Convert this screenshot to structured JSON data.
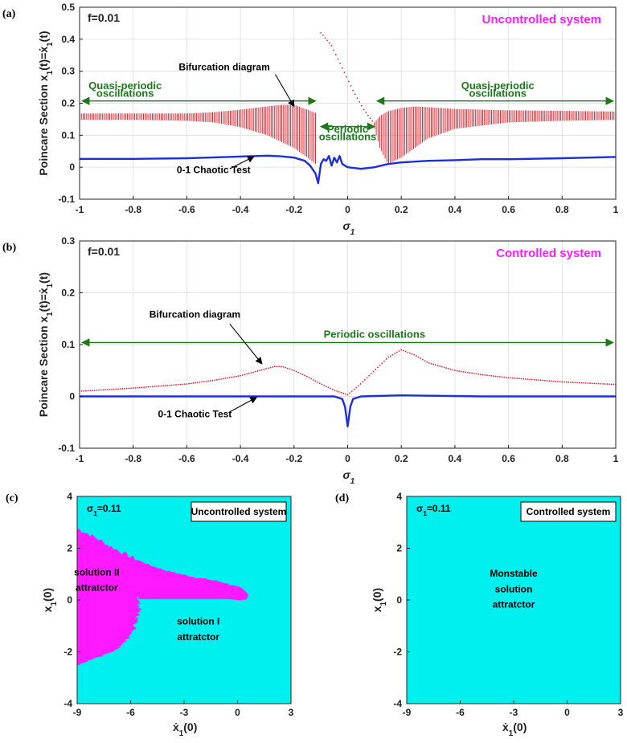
{
  "colors": {
    "bifurcation": "#e8242e",
    "chaotic_test": "#1f2fd6",
    "arrow_green": "#1a7a1a",
    "uncontrolled_title": "#ff1aff",
    "basin_cyan": "#00f0f0",
    "basin_magenta": "#ff19ff"
  },
  "chart_data": [
    {
      "id": "a",
      "type": "line",
      "panel_label": "(a)",
      "param_label": "f=0.01",
      "title": "Uncontrolled system",
      "xlabel": "σ1",
      "ylabel": "Poincare Section x1(t)=ẋ1(t)",
      "xlim": [
        -1,
        1
      ],
      "ylim": [
        -0.1,
        0.5
      ],
      "xticks": [
        -1,
        -0.8,
        -0.6,
        -0.4,
        -0.2,
        0,
        0.2,
        0.4,
        0.6,
        0.8,
        1
      ],
      "xtick_labels": [
        "-1",
        "-0.8",
        "-0.6",
        "-0.4",
        "-0.2",
        "0",
        "0.2",
        "0.4",
        "0.6",
        "0.8",
        "1"
      ],
      "yticks": [
        -0.1,
        0,
        0.1,
        0.2,
        0.3,
        0.4,
        0.5
      ],
      "ytick_labels": [
        "-0.1",
        "0",
        "0.1",
        "0.2",
        "0.3",
        "0.4",
        "0.5"
      ],
      "series": [
        {
          "name": "Bifurcation diagram",
          "style": "quasi-periodic band",
          "x": [
            -1,
            -0.8,
            -0.6,
            -0.5,
            -0.4,
            -0.3,
            -0.25,
            -0.2,
            -0.15,
            -0.12
          ],
          "upper": [
            0.168,
            0.168,
            0.168,
            0.172,
            0.18,
            0.19,
            0.195,
            0.195,
            0.18,
            0.17
          ],
          "lower": [
            0.148,
            0.148,
            0.145,
            0.14,
            0.125,
            0.1,
            0.08,
            0.06,
            0.03,
            0.01
          ]
        },
        {
          "name": "Bifurcation diagram",
          "style": "periodic dotted",
          "x": [
            -0.1,
            -0.06,
            -0.02,
            0.02,
            0.06,
            0.1
          ],
          "values": [
            0.42,
            0.38,
            0.31,
            0.24,
            0.18,
            0.135
          ]
        },
        {
          "name": "Bifurcation diagram",
          "style": "quasi-periodic band",
          "x": [
            0.1,
            0.12,
            0.15,
            0.2,
            0.25,
            0.3,
            0.4,
            0.6,
            0.8,
            1
          ],
          "upper": [
            0.14,
            0.16,
            0.175,
            0.185,
            0.19,
            0.188,
            0.182,
            0.178,
            0.176,
            0.174
          ],
          "lower": [
            0.12,
            0.06,
            0.01,
            0.03,
            0.06,
            0.09,
            0.12,
            0.14,
            0.145,
            0.148
          ]
        },
        {
          "name": "0-1 Chaotic Test",
          "x": [
            -1,
            -0.8,
            -0.6,
            -0.45,
            -0.3,
            -0.25,
            -0.2,
            -0.16,
            -0.14,
            -0.12,
            -0.11,
            -0.1,
            -0.09,
            -0.08,
            -0.07,
            -0.06,
            -0.05,
            -0.04,
            -0.03,
            -0.02,
            0,
            0.05,
            0.1,
            0.15,
            0.2,
            0.3,
            0.4,
            0.5,
            0.6,
            0.8,
            1
          ],
          "values": [
            0.026,
            0.026,
            0.028,
            0.032,
            0.036,
            0.034,
            0.03,
            0.02,
            0.005,
            -0.02,
            -0.05,
            0.01,
            0.025,
            0.02,
            0.035,
            0.005,
            0.03,
            0.015,
            0.035,
            0.01,
            0.0,
            -0.005,
            0.0,
            0.01,
            0.015,
            0.02,
            0.022,
            0.025,
            0.025,
            0.028,
            0.032
          ]
        }
      ],
      "annotations": [
        {
          "text": "Quasi-periodic",
          "x": -0.83,
          "y": 0.244,
          "color": "green"
        },
        {
          "text": "oscillations",
          "x": -0.83,
          "y": 0.22,
          "color": "green"
        },
        {
          "text": "Bifurcation diagram",
          "x": -0.46,
          "y": 0.303,
          "color": "black"
        },
        {
          "text": "Periodic",
          "x": 0.0,
          "y": 0.108,
          "color": "green"
        },
        {
          "text": "oscillations",
          "x": 0.0,
          "y": 0.084,
          "color": "green"
        },
        {
          "text": "Quasi-periodic",
          "x": 0.56,
          "y": 0.244,
          "color": "green"
        },
        {
          "text": "oscillations",
          "x": 0.56,
          "y": 0.22,
          "color": "green"
        },
        {
          "text": "0-1 Chaotic Test",
          "x": -0.5,
          "y": -0.018,
          "color": "black"
        }
      ]
    },
    {
      "id": "b",
      "type": "line",
      "panel_label": "(b)",
      "param_label": "f=0.01",
      "title": "Controlled system",
      "xlabel": "σ1",
      "ylabel": "Poincare Section x1(t)=ẋ1(t)",
      "xlim": [
        -1,
        1
      ],
      "ylim": [
        -0.1,
        0.3
      ],
      "xticks": [
        -1,
        -0.8,
        -0.6,
        -0.4,
        -0.2,
        0,
        0.2,
        0.4,
        0.6,
        0.8,
        1
      ],
      "xtick_labels": [
        "-1",
        "-0.8",
        "-0.6",
        "-0.4",
        "-0.2",
        "0",
        "0.2",
        "0.4",
        "0.6",
        "0.8",
        "1"
      ],
      "yticks": [
        -0.1,
        0,
        0.1,
        0.2,
        0.3
      ],
      "ytick_labels": [
        "-0.1",
        "0",
        "0.1",
        "0.2",
        "0.3"
      ],
      "series": [
        {
          "name": "Bifurcation diagram",
          "style": "periodic dotted",
          "x": [
            -1,
            -0.8,
            -0.6,
            -0.5,
            -0.4,
            -0.35,
            -0.3,
            -0.27,
            -0.24,
            -0.2,
            -0.15,
            -0.1,
            -0.05,
            0,
            0.05,
            0.1,
            0.15,
            0.2,
            0.25,
            0.3,
            0.4,
            0.5,
            0.6,
            0.8,
            1
          ],
          "values": [
            0.01,
            0.016,
            0.024,
            0.031,
            0.04,
            0.047,
            0.054,
            0.058,
            0.057,
            0.05,
            0.038,
            0.024,
            0.012,
            0.003,
            0.025,
            0.05,
            0.075,
            0.09,
            0.08,
            0.065,
            0.05,
            0.042,
            0.036,
            0.028,
            0.023
          ]
        },
        {
          "name": "0-1 Chaotic Test",
          "x": [
            -1,
            -0.5,
            -0.2,
            -0.05,
            -0.02,
            -0.01,
            0,
            0.01,
            0.02,
            0.05,
            0.2,
            0.5,
            1
          ],
          "values": [
            0.0,
            0.0,
            0.0,
            0.0,
            -0.005,
            -0.02,
            -0.058,
            -0.02,
            -0.005,
            0.0,
            0.002,
            0.0,
            0.0
          ]
        }
      ],
      "annotations": [
        {
          "text": "Bifurcation diagram",
          "x": -0.57,
          "y": 0.152,
          "color": "black"
        },
        {
          "text": "Periodic  oscillations",
          "x": 0.1,
          "y": 0.113,
          "color": "green"
        },
        {
          "text": "0-1 Chaotic Test",
          "x": -0.57,
          "y": -0.04,
          "color": "black"
        }
      ]
    },
    {
      "id": "c",
      "type": "heatmap",
      "panel_label": "(c)",
      "param_label": "σ1=0.11",
      "title": "Uncontrolled system",
      "xlabel": "ẋ1(0)",
      "ylabel": "x1(0)",
      "xlim": [
        -9,
        3
      ],
      "ylim": [
        -4,
        4
      ],
      "xticks": [
        -9,
        -6,
        -3,
        0,
        3
      ],
      "xtick_labels": [
        "-9",
        "-6",
        "-3",
        "0",
        "3"
      ],
      "yticks": [
        -4,
        -2,
        0,
        2,
        4
      ],
      "ytick_labels": [
        "-4",
        "-2",
        "0",
        "2",
        "4"
      ],
      "regions": [
        {
          "name": "solution I attratctor",
          "color": "cyan"
        },
        {
          "name": "solution II attratctor",
          "color": "magenta"
        }
      ],
      "annotations": [
        {
          "text": "solution II",
          "x": -7.9,
          "y": 0.95
        },
        {
          "text": "attratctor",
          "x": -7.9,
          "y": 0.35
        },
        {
          "text": "solution I",
          "x": -2.2,
          "y": -0.95
        },
        {
          "text": "attratctor",
          "x": -2.2,
          "y": -1.55
        }
      ]
    },
    {
      "id": "d",
      "type": "heatmap",
      "panel_label": "(d)",
      "param_label": "σ1=0.11",
      "title": "Controlled system",
      "xlabel": "ẋ1(0)",
      "ylabel": "x1(0)",
      "xlim": [
        -9,
        3
      ],
      "ylim": [
        -4,
        4
      ],
      "xticks": [
        -9,
        -6,
        -3,
        0,
        3
      ],
      "xtick_labels": [
        "-9",
        "-6",
        "-3",
        "0",
        "3"
      ],
      "yticks": [
        -4,
        -2,
        0,
        2,
        4
      ],
      "ytick_labels": [
        "-4",
        "-2",
        "0",
        "2",
        "4"
      ],
      "regions": [
        {
          "name": "Monstable solution attratctor",
          "color": "cyan"
        }
      ],
      "annotations": [
        {
          "text": "Monstable",
          "x": -3,
          "y": 0.9
        },
        {
          "text": "solution",
          "x": -3,
          "y": 0.3
        },
        {
          "text": "attratctor",
          "x": -3,
          "y": -0.3
        }
      ]
    }
  ]
}
